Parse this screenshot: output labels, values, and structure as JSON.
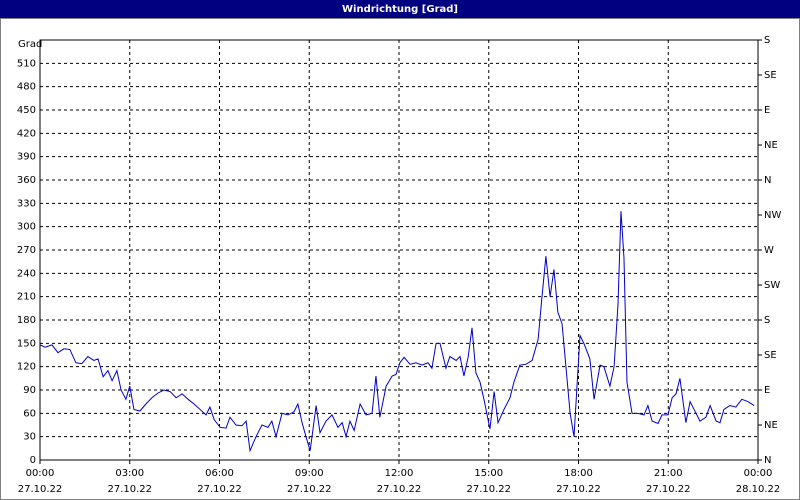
{
  "chart_data": {
    "type": "line",
    "title": "Windrichtung [Grad]",
    "ylabel": "Grad",
    "x": [
      0.0,
      0.17,
      0.4,
      0.6,
      0.8,
      1.0,
      1.2,
      1.4,
      1.6,
      1.8,
      1.94,
      2.11,
      2.27,
      2.41,
      2.57,
      2.71,
      2.87,
      3.0,
      3.14,
      3.34,
      3.54,
      3.74,
      3.94,
      4.14,
      4.35,
      4.55,
      4.75,
      4.95,
      5.15,
      5.35,
      5.55,
      5.68,
      5.82,
      6.02,
      6.22,
      6.35,
      6.55,
      6.75,
      6.89,
      7.02,
      7.22,
      7.42,
      7.62,
      7.75,
      7.89,
      8.09,
      8.29,
      8.49,
      8.62,
      8.76,
      8.89,
      9.03,
      9.23,
      9.36,
      9.56,
      9.76,
      9.96,
      10.1,
      10.23,
      10.36,
      10.5,
      10.7,
      10.9,
      11.1,
      11.23,
      11.36,
      11.57,
      11.77,
      11.9,
      12.03,
      12.17,
      12.37,
      12.57,
      12.77,
      12.97,
      13.1,
      13.24,
      13.37,
      13.57,
      13.7,
      13.91,
      14.04,
      14.17,
      14.31,
      14.44,
      14.57,
      14.71,
      14.84,
      15.04,
      15.18,
      15.31,
      15.51,
      15.71,
      15.84,
      16.04,
      16.24,
      16.45,
      16.65,
      16.78,
      16.91,
      17.05,
      17.18,
      17.31,
      17.45,
      17.58,
      17.72,
      17.85,
      18.05,
      18.18,
      18.38,
      18.52,
      18.72,
      18.85,
      19.05,
      19.19,
      19.32,
      19.42,
      19.52,
      19.62,
      19.79,
      19.99,
      20.19,
      20.32,
      20.46,
      20.66,
      20.79,
      20.99,
      21.13,
      21.26,
      21.39,
      21.59,
      21.73,
      21.93,
      22.06,
      22.26,
      22.4,
      22.6,
      22.73,
      22.86,
      23.06,
      23.26,
      23.46,
      23.67,
      23.87
    ],
    "values": [
      148,
      145,
      148,
      138,
      143,
      142,
      125,
      124,
      133,
      128,
      130,
      107,
      115,
      102,
      115,
      90,
      78,
      95,
      65,
      63,
      72,
      80,
      86,
      90,
      88,
      80,
      85,
      78,
      72,
      65,
      58,
      68,
      52,
      42,
      41,
      55,
      45,
      44,
      50,
      12,
      30,
      45,
      42,
      50,
      30,
      60,
      58,
      62,
      72,
      48,
      30,
      12,
      70,
      35,
      50,
      58,
      42,
      48,
      30,
      50,
      38,
      72,
      58,
      60,
      108,
      55,
      95,
      108,
      110,
      125,
      132,
      123,
      125,
      122,
      125,
      118,
      150,
      150,
      118,
      133,
      128,
      133,
      108,
      132,
      170,
      112,
      100,
      78,
      40,
      88,
      48,
      65,
      80,
      100,
      122,
      123,
      128,
      155,
      210,
      262,
      210,
      245,
      190,
      175,
      120,
      60,
      30,
      160,
      150,
      130,
      78,
      122,
      120,
      95,
      120,
      200,
      320,
      260,
      100,
      60,
      60,
      58,
      70,
      50,
      47,
      58,
      58,
      80,
      85,
      105,
      48,
      75,
      60,
      50,
      55,
      70,
      50,
      48,
      65,
      70,
      68,
      78,
      75,
      70
    ],
    "color": "#0000c8",
    "xlim": [
      0,
      24
    ],
    "xticks": [
      {
        "value": 0,
        "label": "00:00",
        "date": "27.10.22"
      },
      {
        "value": 3,
        "label": "03:00",
        "date": "27.10.22"
      },
      {
        "value": 6,
        "label": "06:00",
        "date": "27.10.22"
      },
      {
        "value": 9,
        "label": "09:00",
        "date": "27.10.22"
      },
      {
        "value": 12,
        "label": "12:00",
        "date": "27.10.22"
      },
      {
        "value": 15,
        "label": "15:00",
        "date": "27.10.22"
      },
      {
        "value": 18,
        "label": "18:00",
        "date": "27.10.22"
      },
      {
        "value": 21,
        "label": "21:00",
        "date": "27.10.22"
      },
      {
        "value": 24,
        "label": "00:00",
        "date": "28.10.22"
      }
    ],
    "ylim": [
      0,
      540
    ],
    "yticks": [
      0,
      30,
      60,
      90,
      120,
      150,
      180,
      210,
      240,
      270,
      300,
      330,
      360,
      390,
      420,
      450,
      480,
      510
    ],
    "y2lim": [
      0,
      540
    ],
    "y2ticks": [
      {
        "value": 0,
        "label": "N"
      },
      {
        "value": 45,
        "label": "NE"
      },
      {
        "value": 90,
        "label": "E"
      },
      {
        "value": 135,
        "label": "SE"
      },
      {
        "value": 180,
        "label": "S"
      },
      {
        "value": 225,
        "label": "SW"
      },
      {
        "value": 270,
        "label": "W"
      },
      {
        "value": 315,
        "label": "NW"
      },
      {
        "value": 360,
        "label": "N"
      },
      {
        "value": 405,
        "label": "NE"
      },
      {
        "value": 450,
        "label": "E"
      },
      {
        "value": 495,
        "label": "SE"
      },
      {
        "value": 540,
        "label": "S"
      }
    ],
    "grid": true
  }
}
